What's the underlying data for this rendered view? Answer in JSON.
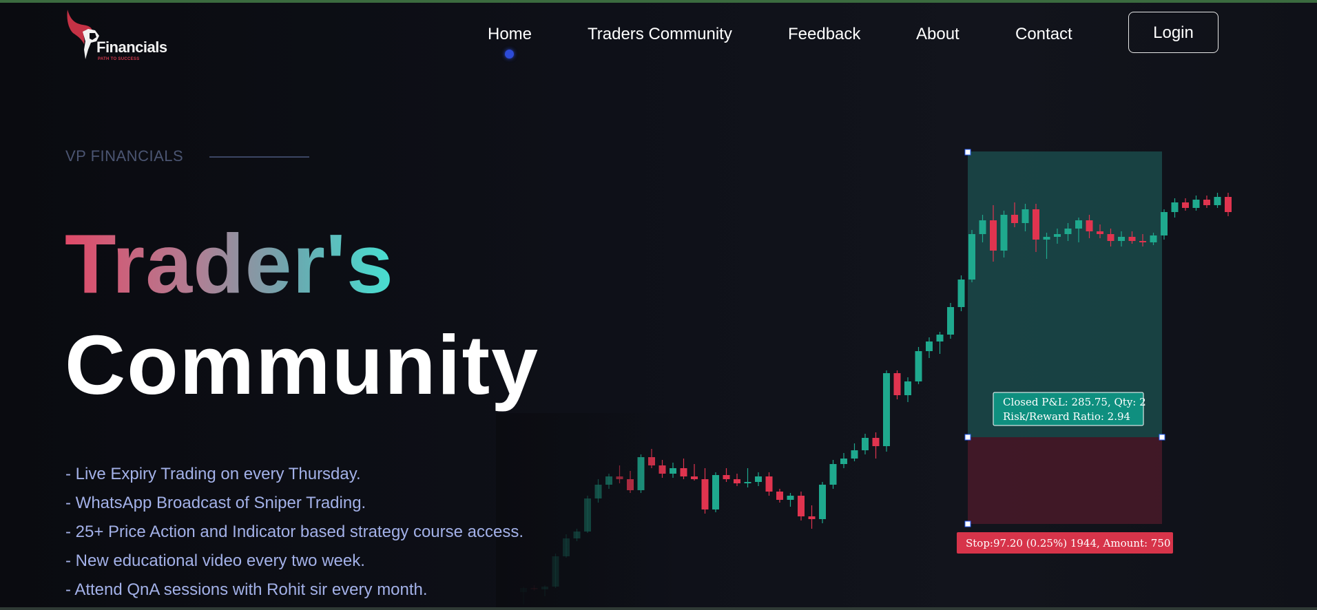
{
  "brand": {
    "name": "Financials",
    "tagline": "PATH TO SUCCESS",
    "accent_color": "#d2384c"
  },
  "nav": {
    "items": [
      {
        "label": "Home",
        "active": true
      },
      {
        "label": "Traders Community",
        "active": false
      },
      {
        "label": "Feedback",
        "active": false
      },
      {
        "label": "About",
        "active": false
      },
      {
        "label": "Contact",
        "active": false
      }
    ],
    "login_label": "Login",
    "active_indicator_color": "#2d4bd8"
  },
  "hero": {
    "eyebrow": "VP FINANCIALS",
    "title_line1": "Trader's",
    "title_line2": "Community",
    "features": [
      "- Live Expiry Trading on every Thursday.",
      "- WhatsApp Broadcast of Sniper Trading.",
      "- 25+ Price Action and Indicator based strategy course access.",
      "- New educational video every two week.",
      "- Attend QnA sessions with Rohit sir every month."
    ]
  },
  "trade_overlay": {
    "pnl_line1": "Closed P&L: 285.75, Qty: 2",
    "pnl_line2": "Risk/Reward Ratio: 2.94",
    "stop_label": "Stop:97.20 (0.25%) 1944, Amount: 750",
    "target_color": "#0f8f7f",
    "stop_color": "#d7344a"
  },
  "chart_data": {
    "type": "candlestick",
    "up_color": "#1fa98e",
    "down_color": "#e0344f",
    "candles": [
      {
        "o": 20,
        "h": 28,
        "l": 2,
        "c": 26
      },
      {
        "o": 26,
        "h": 30,
        "l": 22,
        "c": 24
      },
      {
        "o": 24,
        "h": 30,
        "l": 14,
        "c": 28
      },
      {
        "o": 28,
        "h": 76,
        "l": 26,
        "c": 72
      },
      {
        "o": 72,
        "h": 104,
        "l": 70,
        "c": 98
      },
      {
        "o": 98,
        "h": 112,
        "l": 94,
        "c": 108
      },
      {
        "o": 108,
        "h": 160,
        "l": 106,
        "c": 156
      },
      {
        "o": 156,
        "h": 184,
        "l": 150,
        "c": 176
      },
      {
        "o": 176,
        "h": 192,
        "l": 170,
        "c": 188
      },
      {
        "o": 188,
        "h": 204,
        "l": 178,
        "c": 184
      },
      {
        "o": 184,
        "h": 196,
        "l": 164,
        "c": 168
      },
      {
        "o": 168,
        "h": 220,
        "l": 164,
        "c": 216
      },
      {
        "o": 216,
        "h": 228,
        "l": 200,
        "c": 204
      },
      {
        "o": 204,
        "h": 212,
        "l": 186,
        "c": 192
      },
      {
        "o": 192,
        "h": 208,
        "l": 186,
        "c": 200
      },
      {
        "o": 200,
        "h": 214,
        "l": 184,
        "c": 188
      },
      {
        "o": 188,
        "h": 206,
        "l": 182,
        "c": 184
      },
      {
        "o": 184,
        "h": 200,
        "l": 134,
        "c": 140
      },
      {
        "o": 140,
        "h": 194,
        "l": 136,
        "c": 190
      },
      {
        "o": 190,
        "h": 200,
        "l": 180,
        "c": 184
      },
      {
        "o": 184,
        "h": 192,
        "l": 174,
        "c": 178
      },
      {
        "o": 178,
        "h": 200,
        "l": 172,
        "c": 180
      },
      {
        "o": 180,
        "h": 194,
        "l": 174,
        "c": 188
      },
      {
        "o": 188,
        "h": 194,
        "l": 160,
        "c": 166
      },
      {
        "o": 166,
        "h": 170,
        "l": 150,
        "c": 154
      },
      {
        "o": 154,
        "h": 164,
        "l": 144,
        "c": 160
      },
      {
        "o": 160,
        "h": 166,
        "l": 124,
        "c": 130
      },
      {
        "o": 130,
        "h": 146,
        "l": 112,
        "c": 126
      },
      {
        "o": 126,
        "h": 180,
        "l": 120,
        "c": 176
      },
      {
        "o": 176,
        "h": 212,
        "l": 170,
        "c": 206
      },
      {
        "o": 206,
        "h": 222,
        "l": 200,
        "c": 214
      },
      {
        "o": 214,
        "h": 236,
        "l": 210,
        "c": 226
      },
      {
        "o": 226,
        "h": 250,
        "l": 220,
        "c": 244
      },
      {
        "o": 244,
        "h": 252,
        "l": 214,
        "c": 232
      },
      {
        "o": 232,
        "h": 342,
        "l": 224,
        "c": 338
      },
      {
        "o": 338,
        "h": 342,
        "l": 300,
        "c": 306
      },
      {
        "o": 306,
        "h": 332,
        "l": 296,
        "c": 326
      },
      {
        "o": 326,
        "h": 376,
        "l": 322,
        "c": 370
      },
      {
        "o": 370,
        "h": 390,
        "l": 360,
        "c": 384
      },
      {
        "o": 384,
        "h": 398,
        "l": 366,
        "c": 394
      },
      {
        "o": 394,
        "h": 440,
        "l": 388,
        "c": 434
      },
      {
        "o": 434,
        "h": 480,
        "l": 428,
        "c": 474
      },
      {
        "o": 474,
        "h": 546,
        "l": 470,
        "c": 540
      },
      {
        "o": 540,
        "h": 568,
        "l": 528,
        "c": 560
      },
      {
        "o": 560,
        "h": 582,
        "l": 500,
        "c": 516
      },
      {
        "o": 516,
        "h": 574,
        "l": 506,
        "c": 568
      },
      {
        "o": 568,
        "h": 586,
        "l": 550,
        "c": 556
      },
      {
        "o": 556,
        "h": 584,
        "l": 544,
        "c": 576
      },
      {
        "o": 576,
        "h": 584,
        "l": 514,
        "c": 532
      },
      {
        "o": 532,
        "h": 542,
        "l": 504,
        "c": 536
      },
      {
        "o": 536,
        "h": 548,
        "l": 526,
        "c": 540
      },
      {
        "o": 540,
        "h": 556,
        "l": 530,
        "c": 548
      },
      {
        "o": 548,
        "h": 564,
        "l": 528,
        "c": 560
      },
      {
        "o": 560,
        "h": 568,
        "l": 534,
        "c": 544
      },
      {
        "o": 544,
        "h": 554,
        "l": 534,
        "c": 540
      },
      {
        "o": 540,
        "h": 548,
        "l": 522,
        "c": 530
      },
      {
        "o": 530,
        "h": 544,
        "l": 522,
        "c": 536
      },
      {
        "o": 536,
        "h": 544,
        "l": 526,
        "c": 530
      },
      {
        "o": 530,
        "h": 540,
        "l": 522,
        "c": 528
      },
      {
        "o": 528,
        "h": 542,
        "l": 524,
        "c": 538
      },
      {
        "o": 538,
        "h": 576,
        "l": 532,
        "c": 572
      },
      {
        "o": 572,
        "h": 592,
        "l": 564,
        "c": 586
      },
      {
        "o": 586,
        "h": 592,
        "l": 574,
        "c": 578
      },
      {
        "o": 578,
        "h": 596,
        "l": 574,
        "c": 590
      },
      {
        "o": 590,
        "h": 596,
        "l": 578,
        "c": 582
      },
      {
        "o": 582,
        "h": 600,
        "l": 578,
        "c": 594
      },
      {
        "o": 594,
        "h": 600,
        "l": 566,
        "c": 572
      }
    ]
  }
}
